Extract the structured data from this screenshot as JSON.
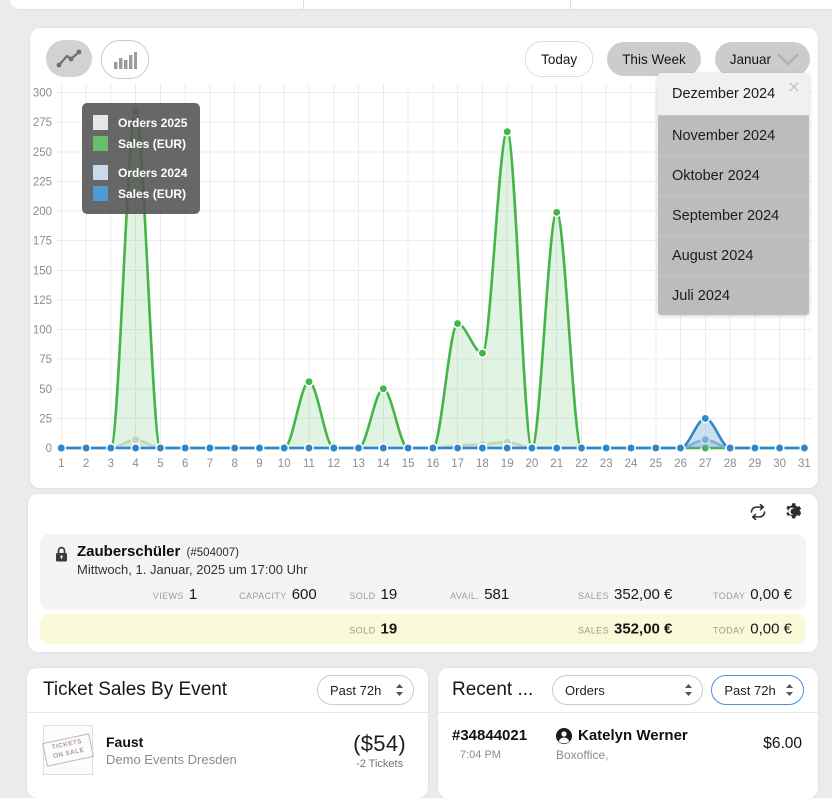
{
  "chart_card": {
    "buttons": {
      "today": "Today",
      "this_week": "This Week",
      "month_select": "Januar"
    },
    "month_dropdown": {
      "items": [
        "Dezember 2024",
        "November 2024",
        "Oktober 2024",
        "September 2024",
        "August 2024",
        "Juli 2024"
      ],
      "active_index": 0,
      "close_icon": "×"
    },
    "legend": {
      "groups": [
        [
          {
            "label": "Orders 2025",
            "color": "#e7e7e7"
          },
          {
            "label": "Sales (EUR)",
            "color": "#67bf6b"
          }
        ],
        [
          {
            "label": "Orders 2024",
            "color": "#c7dbed"
          },
          {
            "label": "Sales (EUR)",
            "color": "#4e9ad3"
          }
        ]
      ]
    }
  },
  "chart_data": {
    "type": "line",
    "title": "",
    "xlabel": "",
    "ylabel": "",
    "x": [
      1,
      2,
      3,
      4,
      5,
      6,
      7,
      8,
      9,
      10,
      11,
      12,
      13,
      14,
      15,
      16,
      17,
      18,
      19,
      20,
      21,
      22,
      23,
      24,
      25,
      26,
      27,
      28,
      29,
      30,
      31
    ],
    "ylim": [
      0,
      300
    ],
    "yticks": [
      0,
      25,
      50,
      75,
      100,
      125,
      150,
      175,
      200,
      225,
      250,
      275,
      300
    ],
    "grid": true,
    "legend_position": "top-left-floating",
    "series": [
      {
        "name": "Orders 2025",
        "color": "#d9d9d9",
        "fill": "rgba(190,190,190,0.22)",
        "values": [
          0,
          0,
          0,
          7,
          0,
          0,
          0,
          0,
          0,
          0,
          0,
          0,
          0,
          0,
          0,
          0,
          2,
          3,
          5,
          0,
          0,
          0,
          0,
          0,
          0,
          0,
          0,
          0,
          0,
          0,
          0
        ]
      },
      {
        "name": "Sales (EUR) 2025",
        "color": "#44b549",
        "fill": "rgba(68,181,73,0.16)",
        "values": [
          0,
          0,
          0,
          284,
          0,
          0,
          0,
          0,
          0,
          0,
          56,
          0,
          0,
          50,
          0,
          0,
          105,
          80,
          267,
          0,
          199,
          0,
          0,
          0,
          0,
          0,
          0,
          0,
          0,
          0,
          0
        ]
      },
      {
        "name": "Orders 2024",
        "color": "#9dbed9",
        "fill": "rgba(157,190,217,0.30)",
        "values": [
          0,
          0,
          0,
          0,
          0,
          0,
          0,
          0,
          0,
          0,
          0,
          0,
          0,
          0,
          0,
          0,
          0,
          0,
          0,
          0,
          0,
          0,
          0,
          0,
          0,
          0,
          7,
          0,
          0,
          0,
          0
        ]
      },
      {
        "name": "Sales (EUR) 2024",
        "color": "#2d87c8",
        "fill": "rgba(45,135,200,0.25)",
        "values": [
          0,
          0,
          0,
          0,
          0,
          0,
          0,
          0,
          0,
          0,
          0,
          0,
          0,
          0,
          0,
          0,
          0,
          0,
          0,
          0,
          0,
          0,
          0,
          0,
          0,
          0,
          25,
          0,
          0,
          0,
          0
        ]
      }
    ]
  },
  "event_panel": {
    "title": "Zauberschüler",
    "event_id": "(#504007)",
    "datetime": "Mittwoch, 1. Januar, 2025 um 17:00 Uhr",
    "stats_row1": [
      {
        "label": "VIEWS",
        "value": "1"
      },
      {
        "label": "CAPACITY",
        "value": "600"
      },
      {
        "label": "SOLD",
        "value": "19"
      },
      {
        "label": "AVAIL.",
        "value": "581"
      },
      {
        "label": "SALES",
        "value": "352,00 €"
      },
      {
        "label": "TODAY",
        "value": "0,00 €"
      }
    ],
    "stats_row2": [
      {
        "label": "SOLD",
        "value": "19"
      },
      {
        "label": "SALES",
        "value": "352,00 €"
      },
      {
        "label": "TODAY",
        "value": "0,00 €"
      }
    ]
  },
  "ticket_sales_panel": {
    "title": "Ticket Sales By Event",
    "range_select": "Past 72h",
    "row": {
      "event": "Faust",
      "organizer": "Demo Events Dresden",
      "amount": "($54)",
      "tickets": "-2 Tickets",
      "thumb_text": "TICKETS ON SALE"
    }
  },
  "recent_panel": {
    "title": "Recent ...",
    "type_select": "Orders",
    "range_select": "Past 72h",
    "row": {
      "order_id": "#34844021",
      "time": "7:04 PM",
      "customer": "Katelyn Werner",
      "channel": "Boxoffice,",
      "amount": "$6.00"
    }
  }
}
